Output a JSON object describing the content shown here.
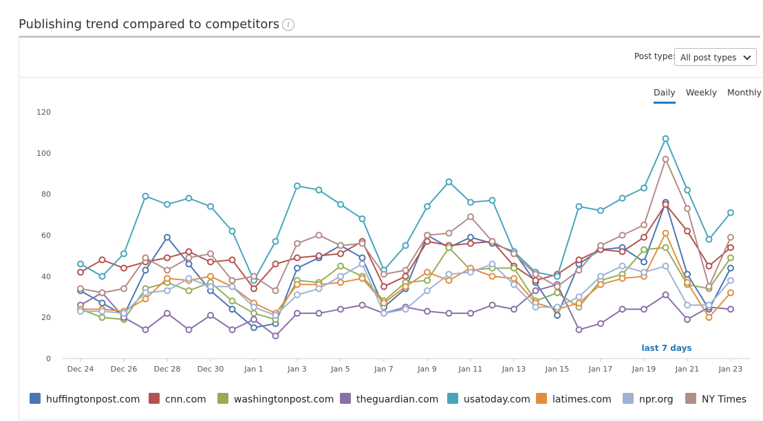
{
  "header": {
    "title": "Publishing trend compared to competitors"
  },
  "controls": {
    "post_type_label": "Post type:",
    "post_type_value": "All post types"
  },
  "tabs": [
    "Daily",
    "Weekly",
    "Monthly"
  ],
  "chart_data": {
    "type": "line",
    "categories": [
      "Dec 24",
      null,
      "Dec 26",
      null,
      "Dec 28",
      null,
      "Dec 30",
      null,
      "Jan 1",
      null,
      "Jan 3",
      null,
      "Jan 5",
      null,
      "Jan 7",
      null,
      "Jan 9",
      null,
      "Jan 11",
      null,
      "Jan 13",
      null,
      "Jan 15",
      null,
      "Jan 17",
      null,
      "Jan 19",
      null,
      "Jan 21",
      null,
      "Jan 23"
    ],
    "series": [
      {
        "name": "huffingtonpost.com",
        "color": "#4a76b0",
        "values": [
          33,
          27,
          21,
          43,
          59,
          46,
          33,
          24,
          15,
          17,
          44,
          49,
          55,
          49,
          25,
          34,
          60,
          54,
          59,
          56,
          52,
          37,
          21,
          46,
          53,
          54,
          47,
          76,
          41,
          24,
          44
        ]
      },
      {
        "name": "cnn.com",
        "color": "#b5524f",
        "values": [
          42,
          48,
          44,
          47,
          49,
          52,
          47,
          48,
          34,
          46,
          49,
          50,
          51,
          57,
          35,
          40,
          57,
          55,
          56,
          57,
          45,
          38,
          41,
          48,
          53,
          52,
          59,
          75,
          62,
          45,
          54
        ]
      },
      {
        "name": "washingtonpost.com",
        "color": "#93ae57",
        "values": [
          24,
          20,
          19,
          34,
          37,
          33,
          37,
          28,
          22,
          19,
          38,
          37,
          45,
          40,
          28,
          37,
          38,
          54,
          43,
          44,
          44,
          28,
          32,
          25,
          38,
          41,
          53,
          54,
          36,
          34,
          49
        ]
      },
      {
        "name": "theguardian.com",
        "color": "#8a6fa7",
        "values": [
          26,
          32,
          20,
          14,
          22,
          14,
          21,
          14,
          19,
          11,
          22,
          22,
          24,
          26,
          22,
          25,
          23,
          22,
          22,
          26,
          24,
          33,
          36,
          14,
          17,
          24,
          24,
          31,
          19,
          25,
          24
        ]
      },
      {
        "name": "usatoday.com",
        "color": "#47a5bb",
        "values": [
          46,
          40,
          51,
          79,
          75,
          78,
          74,
          62,
          38,
          57,
          84,
          82,
          75,
          68,
          43,
          55,
          74,
          86,
          76,
          77,
          52,
          42,
          40,
          74,
          72,
          78,
          83,
          107,
          82,
          58,
          71
        ]
      },
      {
        "name": "latimes.com",
        "color": "#e28e41",
        "values": [
          24,
          24,
          23,
          29,
          39,
          38,
          40,
          35,
          27,
          22,
          36,
          36,
          37,
          39,
          27,
          35,
          42,
          38,
          44,
          40,
          39,
          27,
          24,
          27,
          36,
          39,
          40,
          61,
          37,
          20,
          32
        ]
      },
      {
        "name": "npr.org",
        "color": "#9fb2d6",
        "values": [
          23,
          23,
          22,
          32,
          33,
          39,
          35,
          35,
          25,
          21,
          31,
          34,
          40,
          46,
          22,
          24,
          33,
          41,
          42,
          46,
          36,
          25,
          25,
          30,
          40,
          45,
          42,
          45,
          26,
          26,
          38
        ]
      },
      {
        "name": "NY Times",
        "color": "#b28c88",
        "values": [
          34,
          32,
          34,
          49,
          43,
          49,
          51,
          38,
          40,
          33,
          56,
          60,
          55,
          56,
          41,
          43,
          60,
          61,
          69,
          57,
          51,
          41,
          35,
          43,
          55,
          60,
          65,
          97,
          73,
          35,
          59
        ]
      }
    ],
    "ylim": [
      0,
      120
    ],
    "yticks": [
      0,
      20,
      40,
      60,
      80,
      100,
      120
    ],
    "grid": false,
    "annotation": "last 7 days"
  }
}
